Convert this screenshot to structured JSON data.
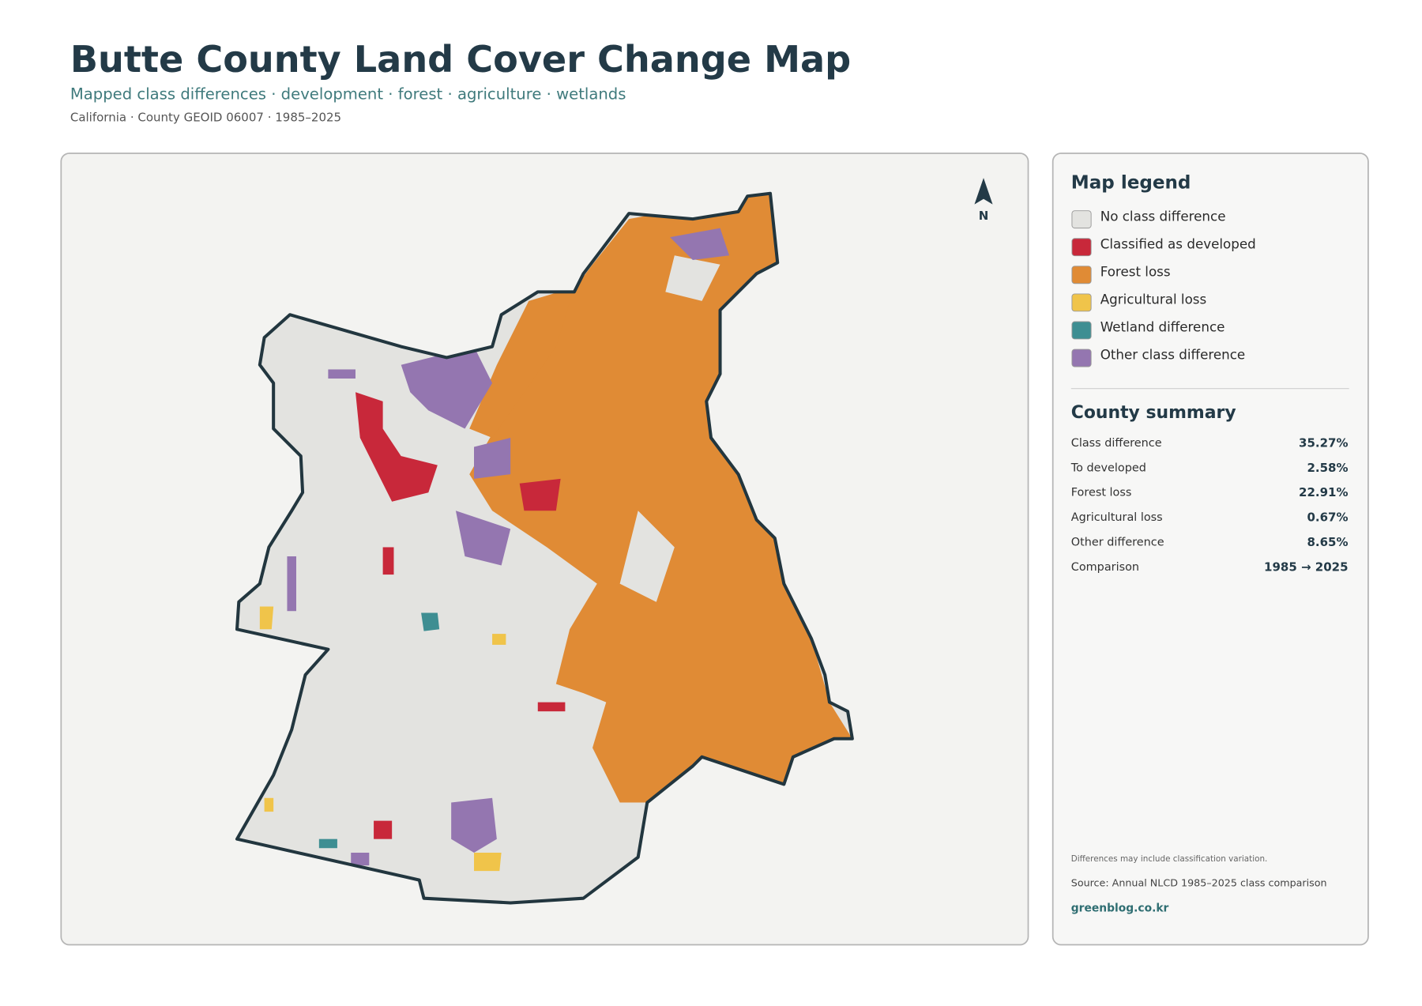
{
  "header": {
    "title": "Butte County Land Cover Change Map",
    "subtitle": "Mapped class differences · development · forest · agriculture · wetlands",
    "meta": "California · County GEOID 06007 · 1985–2025"
  },
  "map": {
    "north_label": "N"
  },
  "legend": {
    "title": "Map legend",
    "items": [
      {
        "label": "No class difference",
        "color": "#e3e3e0"
      },
      {
        "label": "Classified as developed",
        "color": "#c8283a"
      },
      {
        "label": "Forest loss",
        "color": "#e08b35"
      },
      {
        "label": "Agricultural loss",
        "color": "#f0c44a"
      },
      {
        "label": "Wetland difference",
        "color": "#3e8e92"
      },
      {
        "label": "Other class difference",
        "color": "#9476b0"
      }
    ]
  },
  "summary": {
    "title": "County summary",
    "rows": [
      {
        "label": "Class difference",
        "value": "35.27%"
      },
      {
        "label": "To developed",
        "value": "2.58%"
      },
      {
        "label": "Forest loss",
        "value": "22.91%"
      },
      {
        "label": "Agricultural loss",
        "value": "0.67%"
      },
      {
        "label": "Other difference",
        "value": "8.65%"
      },
      {
        "label": "Comparison",
        "value": "1985 → 2025"
      }
    ]
  },
  "footer": {
    "note": "Differences may include classification variation.",
    "source": "Source: Annual NLCD 1985–2025 class comparison",
    "site": "greenblog.co.kr"
  }
}
